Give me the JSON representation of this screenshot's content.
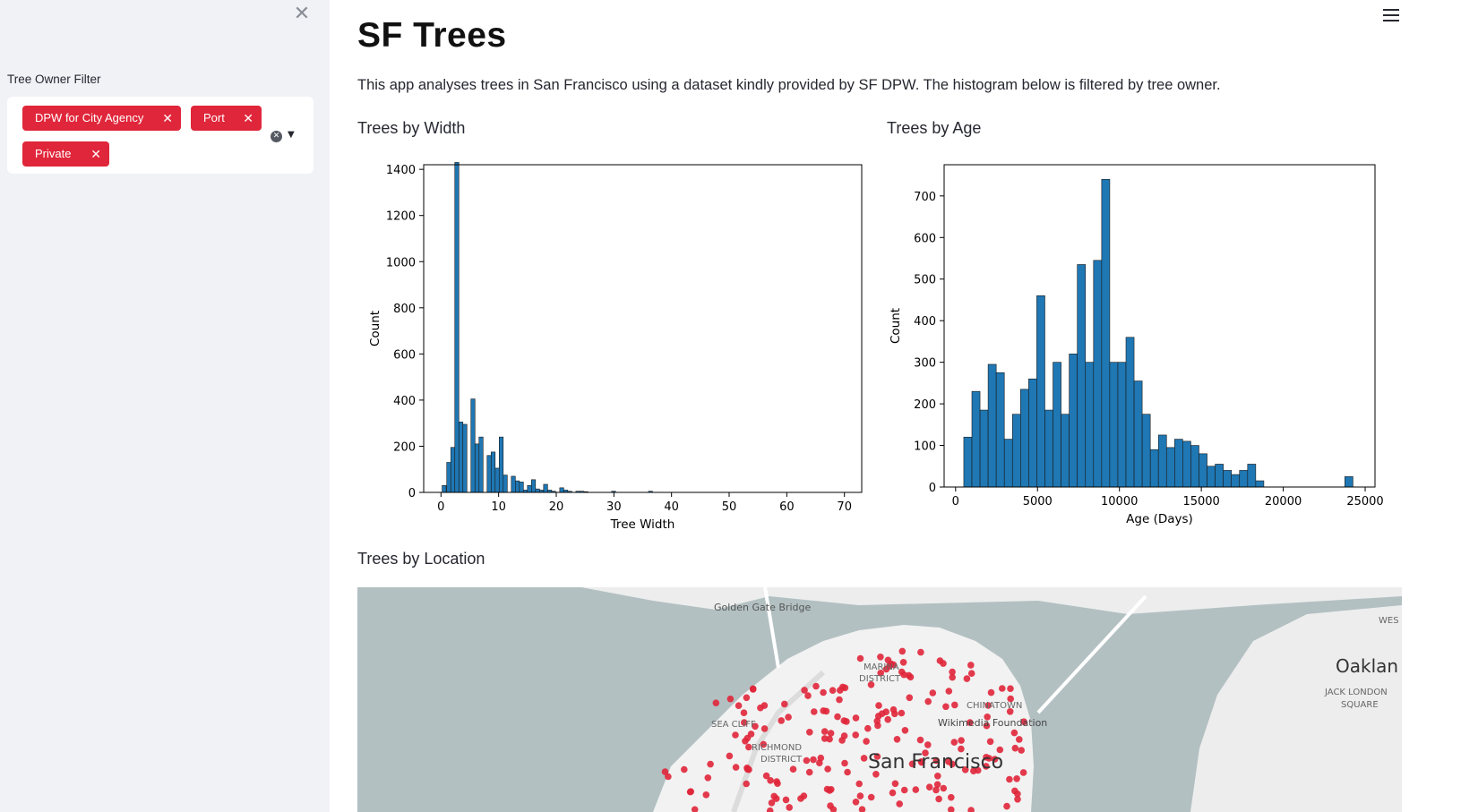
{
  "sidebar": {
    "close_icon": "close-icon",
    "filter_label": "Tree Owner Filter",
    "selected_options": [
      "DPW for City Agency",
      "Port",
      "Private"
    ],
    "clear_icon": "clear-circle-icon",
    "dropdown_icon": "caret-down-icon"
  },
  "header": {
    "menu_icon": "hamburger-menu-icon",
    "title": "SF Trees",
    "description": "This app analyses trees in San Francisco using a dataset kindly provided by SF DPW. The histogram below is filtered by tree owner."
  },
  "sections": {
    "width": "Trees by Width",
    "age": "Trees by Age",
    "location": "Trees by Location"
  },
  "chart_data": [
    {
      "type": "bar",
      "title": "",
      "xlabel": "Tree Width",
      "ylabel": "Count",
      "xlim": [
        -3,
        73
      ],
      "ylim": [
        0,
        1420
      ],
      "xticks": [
        0,
        10,
        20,
        30,
        40,
        50,
        60,
        70
      ],
      "yticks": [
        0,
        200,
        400,
        600,
        800,
        1000,
        1200,
        1400
      ],
      "bin_width": 0.7,
      "color": "#1f77b4",
      "grid": false,
      "x": [
        0.2,
        1,
        1.7,
        2.4,
        3.1,
        3.8,
        4.5,
        5.2,
        5.9,
        6.6,
        7.3,
        8,
        8.7,
        9.4,
        10.1,
        10.8,
        11.5,
        12.2,
        12.9,
        13.6,
        14.3,
        15,
        15.7,
        16.4,
        17.1,
        17.8,
        18.5,
        19.2,
        19.9,
        20.6,
        21.3,
        22,
        22.7,
        23.4,
        24.1,
        24.8,
        25.5,
        29.6,
        36
      ],
      "values": [
        30,
        130,
        195,
        1430,
        305,
        295,
        0,
        405,
        210,
        240,
        0,
        160,
        175,
        105,
        240,
        75,
        0,
        70,
        50,
        45,
        10,
        30,
        55,
        15,
        10,
        35,
        10,
        5,
        0,
        20,
        10,
        5,
        0,
        5,
        5,
        3,
        0,
        5,
        5
      ]
    },
    {
      "type": "bar",
      "title": "",
      "xlabel": "Age (Days)",
      "ylabel": "Count",
      "xlim": [
        -700,
        25600
      ],
      "ylim": [
        0,
        775
      ],
      "xticks": [
        0,
        5000,
        10000,
        15000,
        20000,
        25000
      ],
      "yticks": [
        0,
        100,
        200,
        300,
        400,
        500,
        600,
        700
      ],
      "bin_width": 495,
      "color": "#1f77b4",
      "grid": false,
      "x": [
        500,
        995,
        1490,
        1985,
        2480,
        2975,
        3470,
        3965,
        4460,
        4955,
        5450,
        5945,
        6440,
        6935,
        7430,
        7925,
        8420,
        8915,
        9410,
        9905,
        10400,
        10895,
        11390,
        11885,
        12380,
        12875,
        13370,
        13865,
        14360,
        14855,
        15350,
        15845,
        16340,
        16835,
        17330,
        17825,
        18320,
        23760
      ],
      "values": [
        120,
        230,
        185,
        295,
        275,
        115,
        175,
        235,
        260,
        460,
        185,
        300,
        175,
        320,
        535,
        300,
        545,
        740,
        300,
        300,
        360,
        255,
        175,
        90,
        125,
        95,
        115,
        110,
        100,
        80,
        50,
        55,
        40,
        30,
        40,
        55,
        15,
        25
      ]
    }
  ],
  "map": {
    "labels": [
      "Golden Gate Bridge",
      "Oaklan",
      "JACK LONDON",
      "SQUARE",
      "WES",
      "MARINA",
      "DISTRICT",
      "CHINATOWN",
      "Wikimedia Foundation",
      "SEA CLIFF",
      "RICHMOND",
      "DISTRICT",
      "San Francisco"
    ],
    "point_color": "#e0263a",
    "water_color": "#b3c0c2",
    "land_color": "#f2f2f2"
  }
}
